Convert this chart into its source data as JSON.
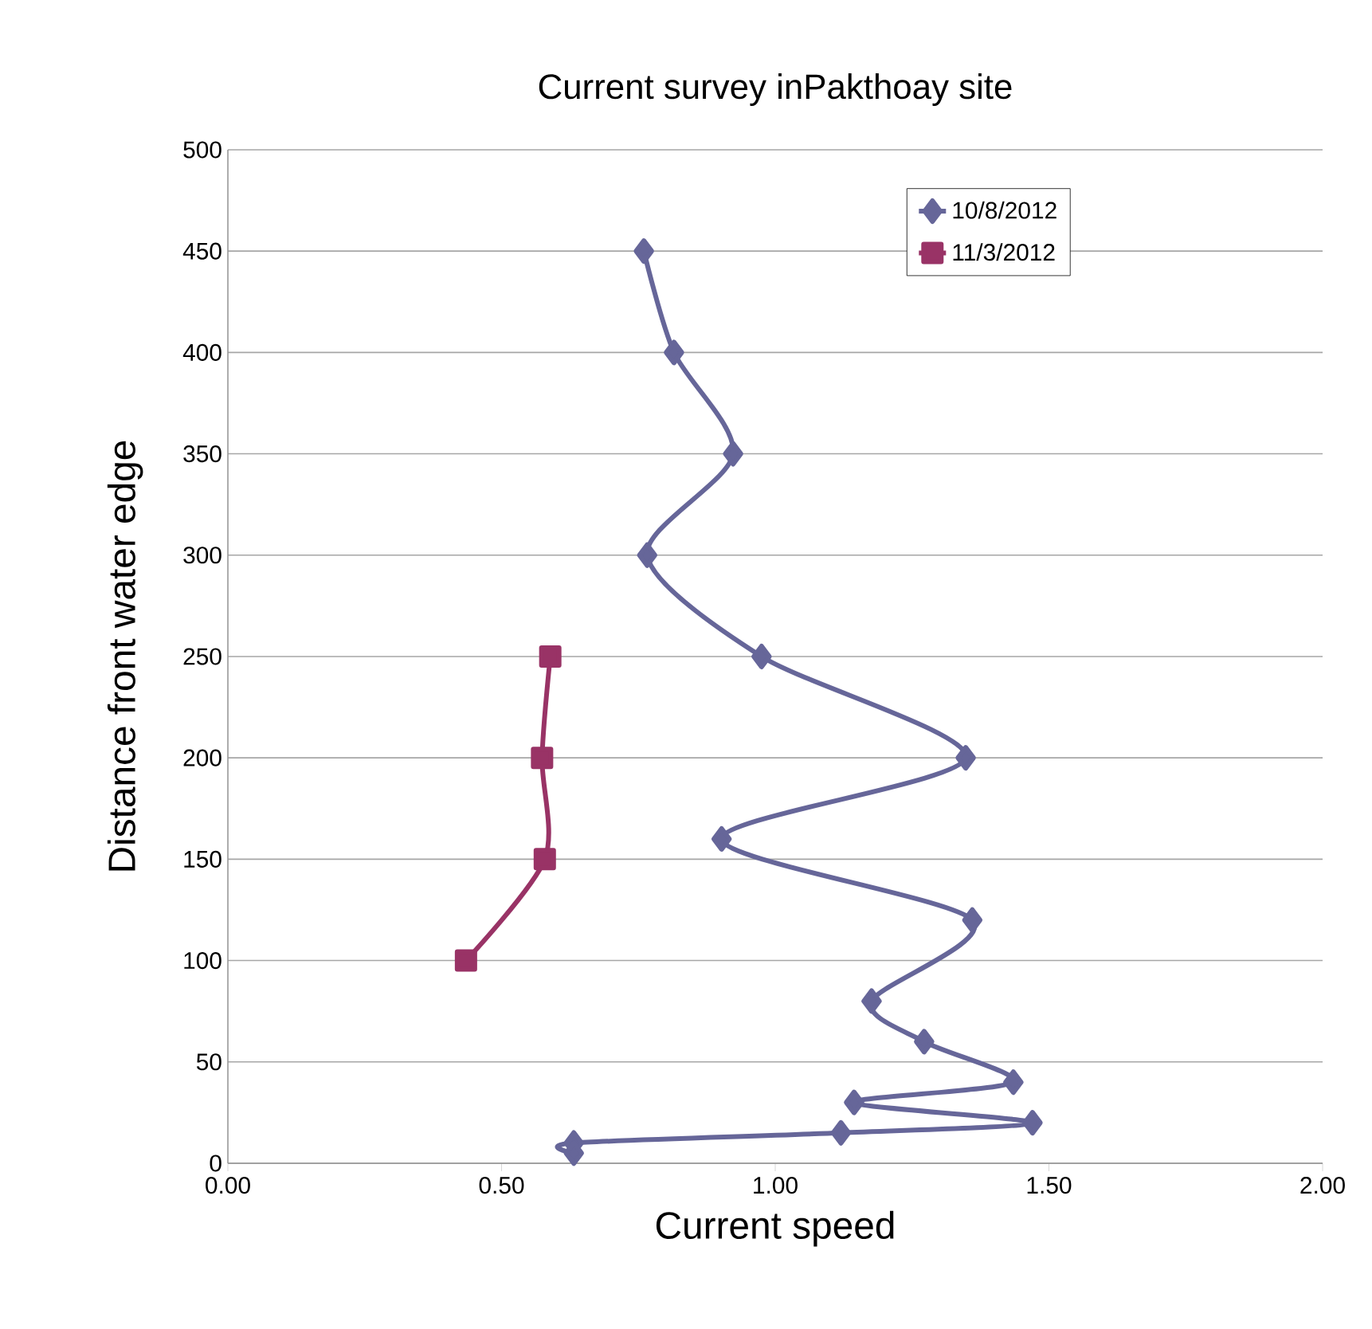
{
  "chart_data": {
    "type": "line",
    "title": "Current survey inPakthoay site",
    "xlabel": "Current speed",
    "ylabel": "Distance front water edge",
    "series": [
      {
        "name": "10/8/2012",
        "color": "#666699",
        "marker": "diamond",
        "x": [
          0.76,
          0.815,
          0.923,
          0.766,
          0.975,
          1.348,
          0.902,
          1.36,
          1.176,
          1.272,
          1.435,
          1.144,
          1.47,
          1.12,
          0.632,
          0.632
        ],
        "values": [
          450,
          400,
          350,
          300,
          250,
          200,
          160,
          120,
          80,
          60,
          40,
          30,
          20,
          15,
          10,
          5
        ]
      },
      {
        "name": "11/3/2012",
        "color": "#993366",
        "marker": "square",
        "x": [
          0.589,
          0.574,
          0.579,
          0.435
        ],
        "values": [
          250,
          200,
          150,
          100
        ]
      }
    ],
    "xlim": [
      0,
      2
    ],
    "ylim": [
      0,
      500
    ],
    "xticks": [
      {
        "value": 0,
        "label": "0.00"
      },
      {
        "value": 0.5,
        "label": "0.50"
      },
      {
        "value": 1,
        "label": "1.00"
      },
      {
        "value": 1.5,
        "label": "1.50"
      },
      {
        "value": 2,
        "label": "2.00"
      }
    ],
    "yticks": [
      0,
      50,
      100,
      150,
      200,
      250,
      300,
      350,
      400,
      450,
      500
    ],
    "grid": "y",
    "legend": "top right",
    "line_style": "solid"
  }
}
